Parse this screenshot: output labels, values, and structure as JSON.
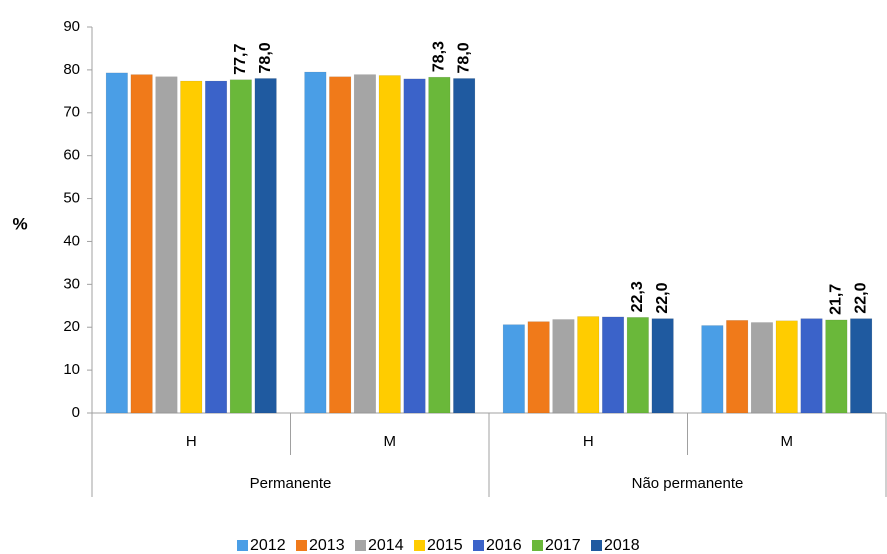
{
  "chart_data": {
    "type": "bar",
    "ylabel": "%",
    "categories": [
      "H",
      "M",
      "H",
      "M"
    ],
    "groups": [
      "Permanente",
      "Não permanente"
    ],
    "ylim": [
      0,
      90
    ],
    "yticks": [
      0,
      10,
      20,
      30,
      40,
      50,
      60,
      70,
      80,
      90
    ],
    "legend": "bottom",
    "series": [
      {
        "name": "2012",
        "color": "#4a9ee6",
        "values": [
          79.3,
          79.5,
          20.6,
          20.4
        ]
      },
      {
        "name": "2013",
        "color": "#f07a1a",
        "values": [
          78.9,
          78.4,
          21.3,
          21.6
        ]
      },
      {
        "name": "2014",
        "color": "#a5a5a5",
        "values": [
          78.4,
          78.9,
          21.8,
          21.1
        ]
      },
      {
        "name": "2015",
        "color": "#ffcc00",
        "values": [
          77.4,
          78.7,
          22.5,
          21.5
        ]
      },
      {
        "name": "2016",
        "color": "#3b63c9",
        "values": [
          77.4,
          77.9,
          22.4,
          22.0
        ]
      },
      {
        "name": "2017",
        "color": "#6ab83a",
        "values": [
          77.7,
          78.3,
          22.3,
          21.7
        ],
        "value_labels": [
          "77,7",
          "78,3",
          "22,3",
          "21,7"
        ]
      },
      {
        "name": "2018",
        "color": "#1f5aa0",
        "values": [
          78.0,
          78.0,
          22.0,
          22.0
        ],
        "value_labels": [
          "78,0",
          "78,0",
          "22,0",
          "22,0"
        ]
      }
    ]
  }
}
